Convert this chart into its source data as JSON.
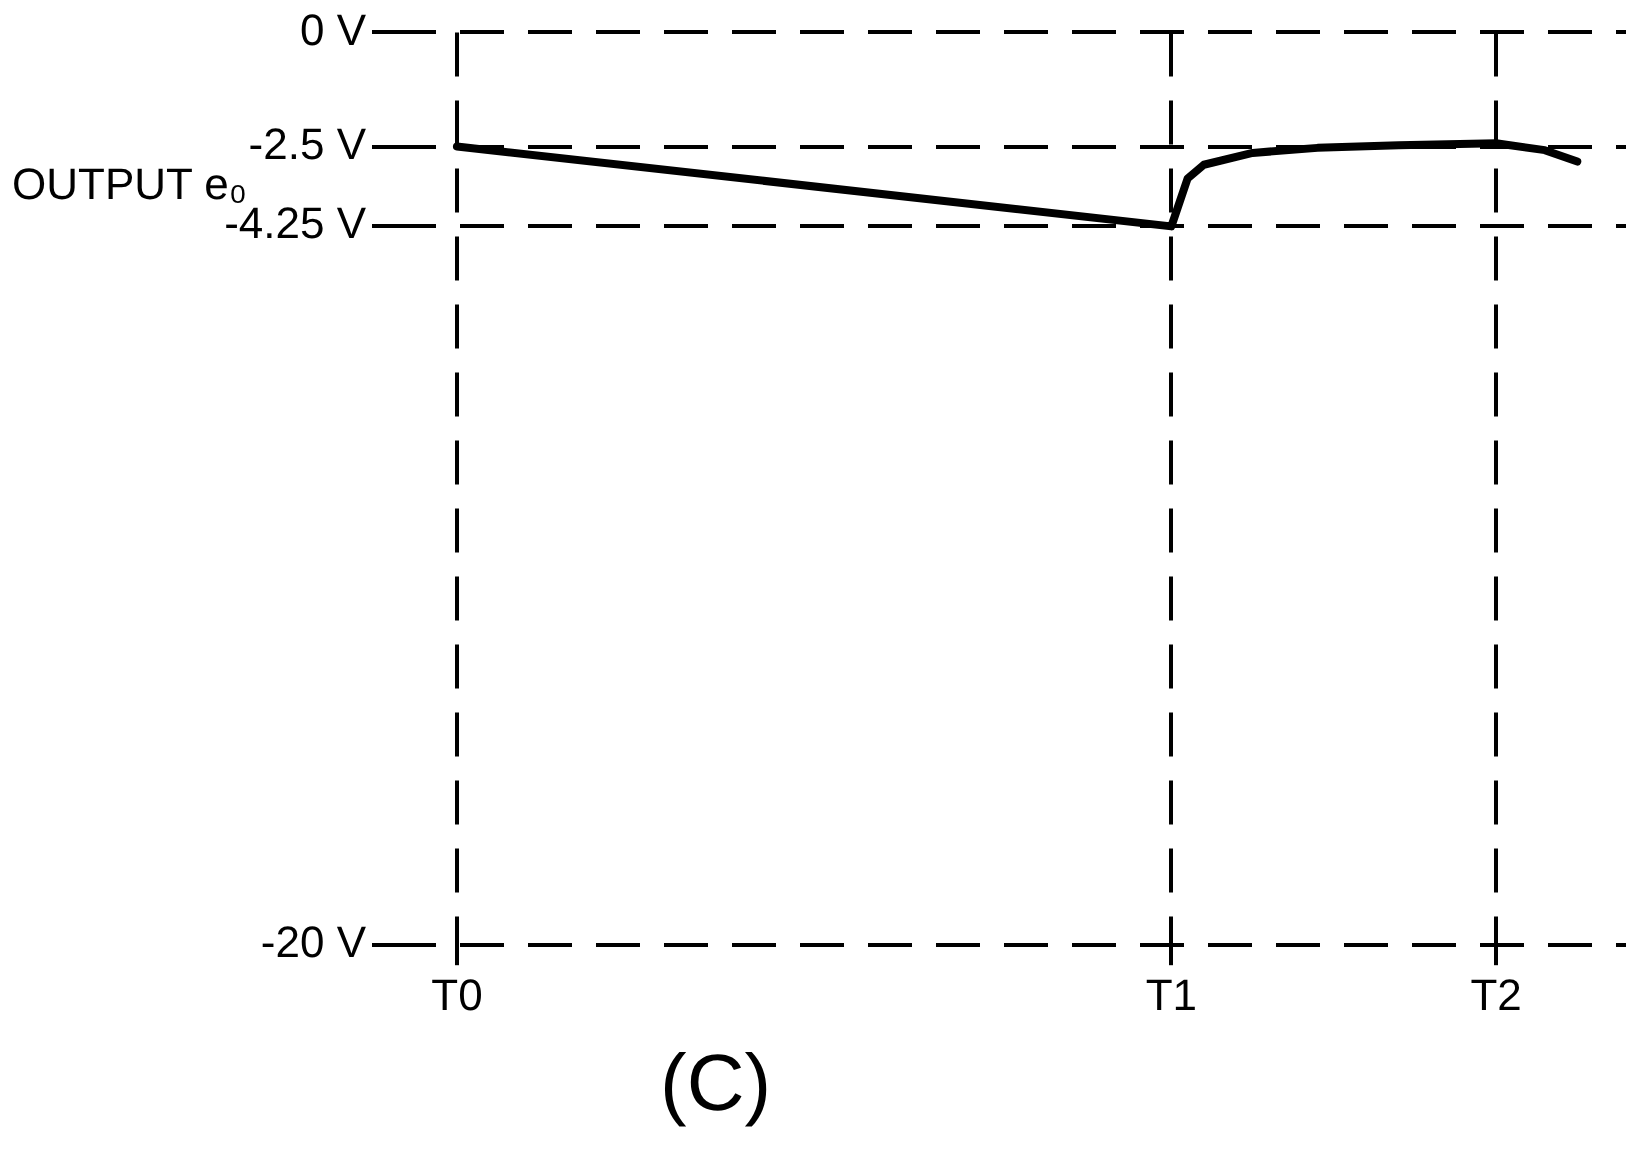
{
  "chart_data": {
    "type": "line",
    "ylabel": "OUTPUT e₀",
    "annotations": [
      "(C)"
    ],
    "categories": [
      null,
      null,
      null,
      null,
      "T0",
      null,
      null,
      null,
      null,
      null,
      null,
      null,
      null,
      null,
      null,
      null,
      null,
      null,
      null,
      null,
      null,
      null,
      null,
      null,
      null,
      null,
      null,
      null,
      null,
      null,
      null,
      null,
      null,
      null,
      null,
      null,
      null,
      null,
      null,
      null,
      null,
      null,
      null,
      null,
      null,
      null,
      null,
      null,
      "T1",
      null,
      null,
      null,
      null,
      null,
      null,
      null,
      null,
      null,
      null,
      null,
      null,
      null,
      null,
      null,
      null,
      null,
      null,
      null,
      "T2",
      null,
      null,
      null,
      null,
      null,
      null,
      null,
      null
    ],
    "series": [
      {
        "color": "#000000",
        "values": [
          null,
          null,
          null,
          null,
          -2.5,
          null,
          null,
          null,
          null,
          null,
          null,
          null,
          null,
          null,
          null,
          null,
          null,
          null,
          null,
          null,
          null,
          null,
          null,
          null,
          null,
          null,
          null,
          null,
          null,
          null,
          null,
          null,
          null,
          null,
          null,
          null,
          null,
          null,
          null,
          null,
          null,
          null,
          null,
          null,
          null,
          null,
          null,
          null,
          -4.25,
          -3.2,
          -2.9,
          null,
          null,
          -2.64,
          null,
          null,
          null,
          -2.53,
          null,
          null,
          null,
          null,
          -2.47,
          null,
          null,
          null,
          null,
          null,
          -2.43,
          null,
          null,
          -2.58,
          null,
          -2.83,
          null,
          null,
          null
        ]
      }
    ],
    "ylim": [
      -20,
      0
    ],
    "yticks": [
      {
        "value": 0,
        "label": "0 V"
      },
      {
        "value": -2.5,
        "label": "-2.5 V"
      },
      {
        "value": -4.25,
        "label": "-4.25 V"
      },
      {
        "value": -20,
        "label": "-20 V"
      }
    ],
    "grid": true,
    "legend": false,
    "marker": "none",
    "line_style": "solid"
  }
}
